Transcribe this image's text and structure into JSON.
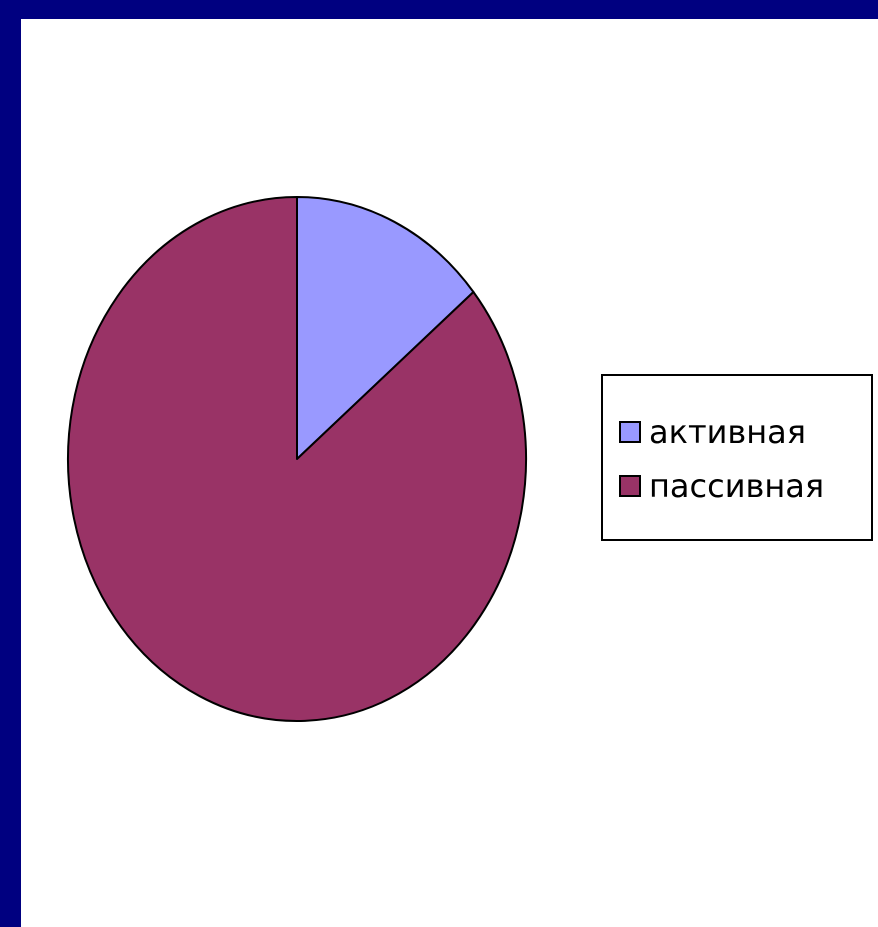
{
  "colors": {
    "frame": "#000080",
    "background": "#ffffff",
    "outline": "#000000"
  },
  "chart_data": {
    "type": "pie",
    "title": "",
    "start_angle_deg": 0,
    "direction": "clockwise",
    "legend_position": "right",
    "series": [
      {
        "name": "активная",
        "value": 14,
        "color": "#9999ff"
      },
      {
        "name": "пассивная",
        "value": 86,
        "color": "#993366"
      }
    ]
  }
}
